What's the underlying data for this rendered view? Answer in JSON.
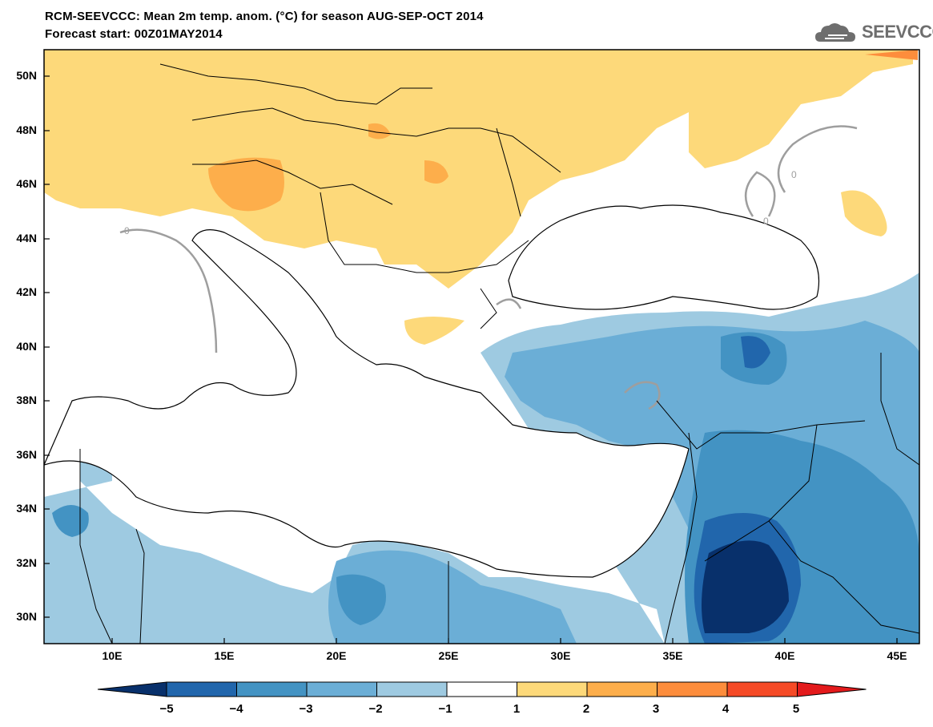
{
  "header": {
    "title_line1": "RCM-SEEVCCC: Mean 2m temp. anom. (°C) for season AUG-SEP-OCT 2014",
    "title_line2": "Forecast start: 00Z01MAY2014",
    "logo_text": "SEEVCCC",
    "logo_icon": "cloud-icon"
  },
  "axes": {
    "lat_labels": [
      "50N",
      "48N",
      "46N",
      "44N",
      "42N",
      "40N",
      "38N",
      "36N",
      "34N",
      "32N",
      "30N"
    ],
    "lon_labels": [
      "10E",
      "15E",
      "20E",
      "25E",
      "30E",
      "35E",
      "40E",
      "45E"
    ]
  },
  "colorbar": {
    "labels": [
      "−5",
      "−4",
      "−3",
      "−2",
      "−1",
      "1",
      "2",
      "3",
      "4",
      "5"
    ],
    "colors": [
      "#08306b",
      "#2166ac",
      "#4393c3",
      "#6baed6",
      "#9ecae1",
      "#ffffff",
      "#fdd97a",
      "#fdae4b",
      "#fd8d3c",
      "#f54a26",
      "#e31a1c"
    ]
  },
  "legend_contour_label": "0",
  "map_region": {
    "lon_range": [
      7,
      46
    ],
    "lat_range": [
      29,
      51
    ]
  }
}
